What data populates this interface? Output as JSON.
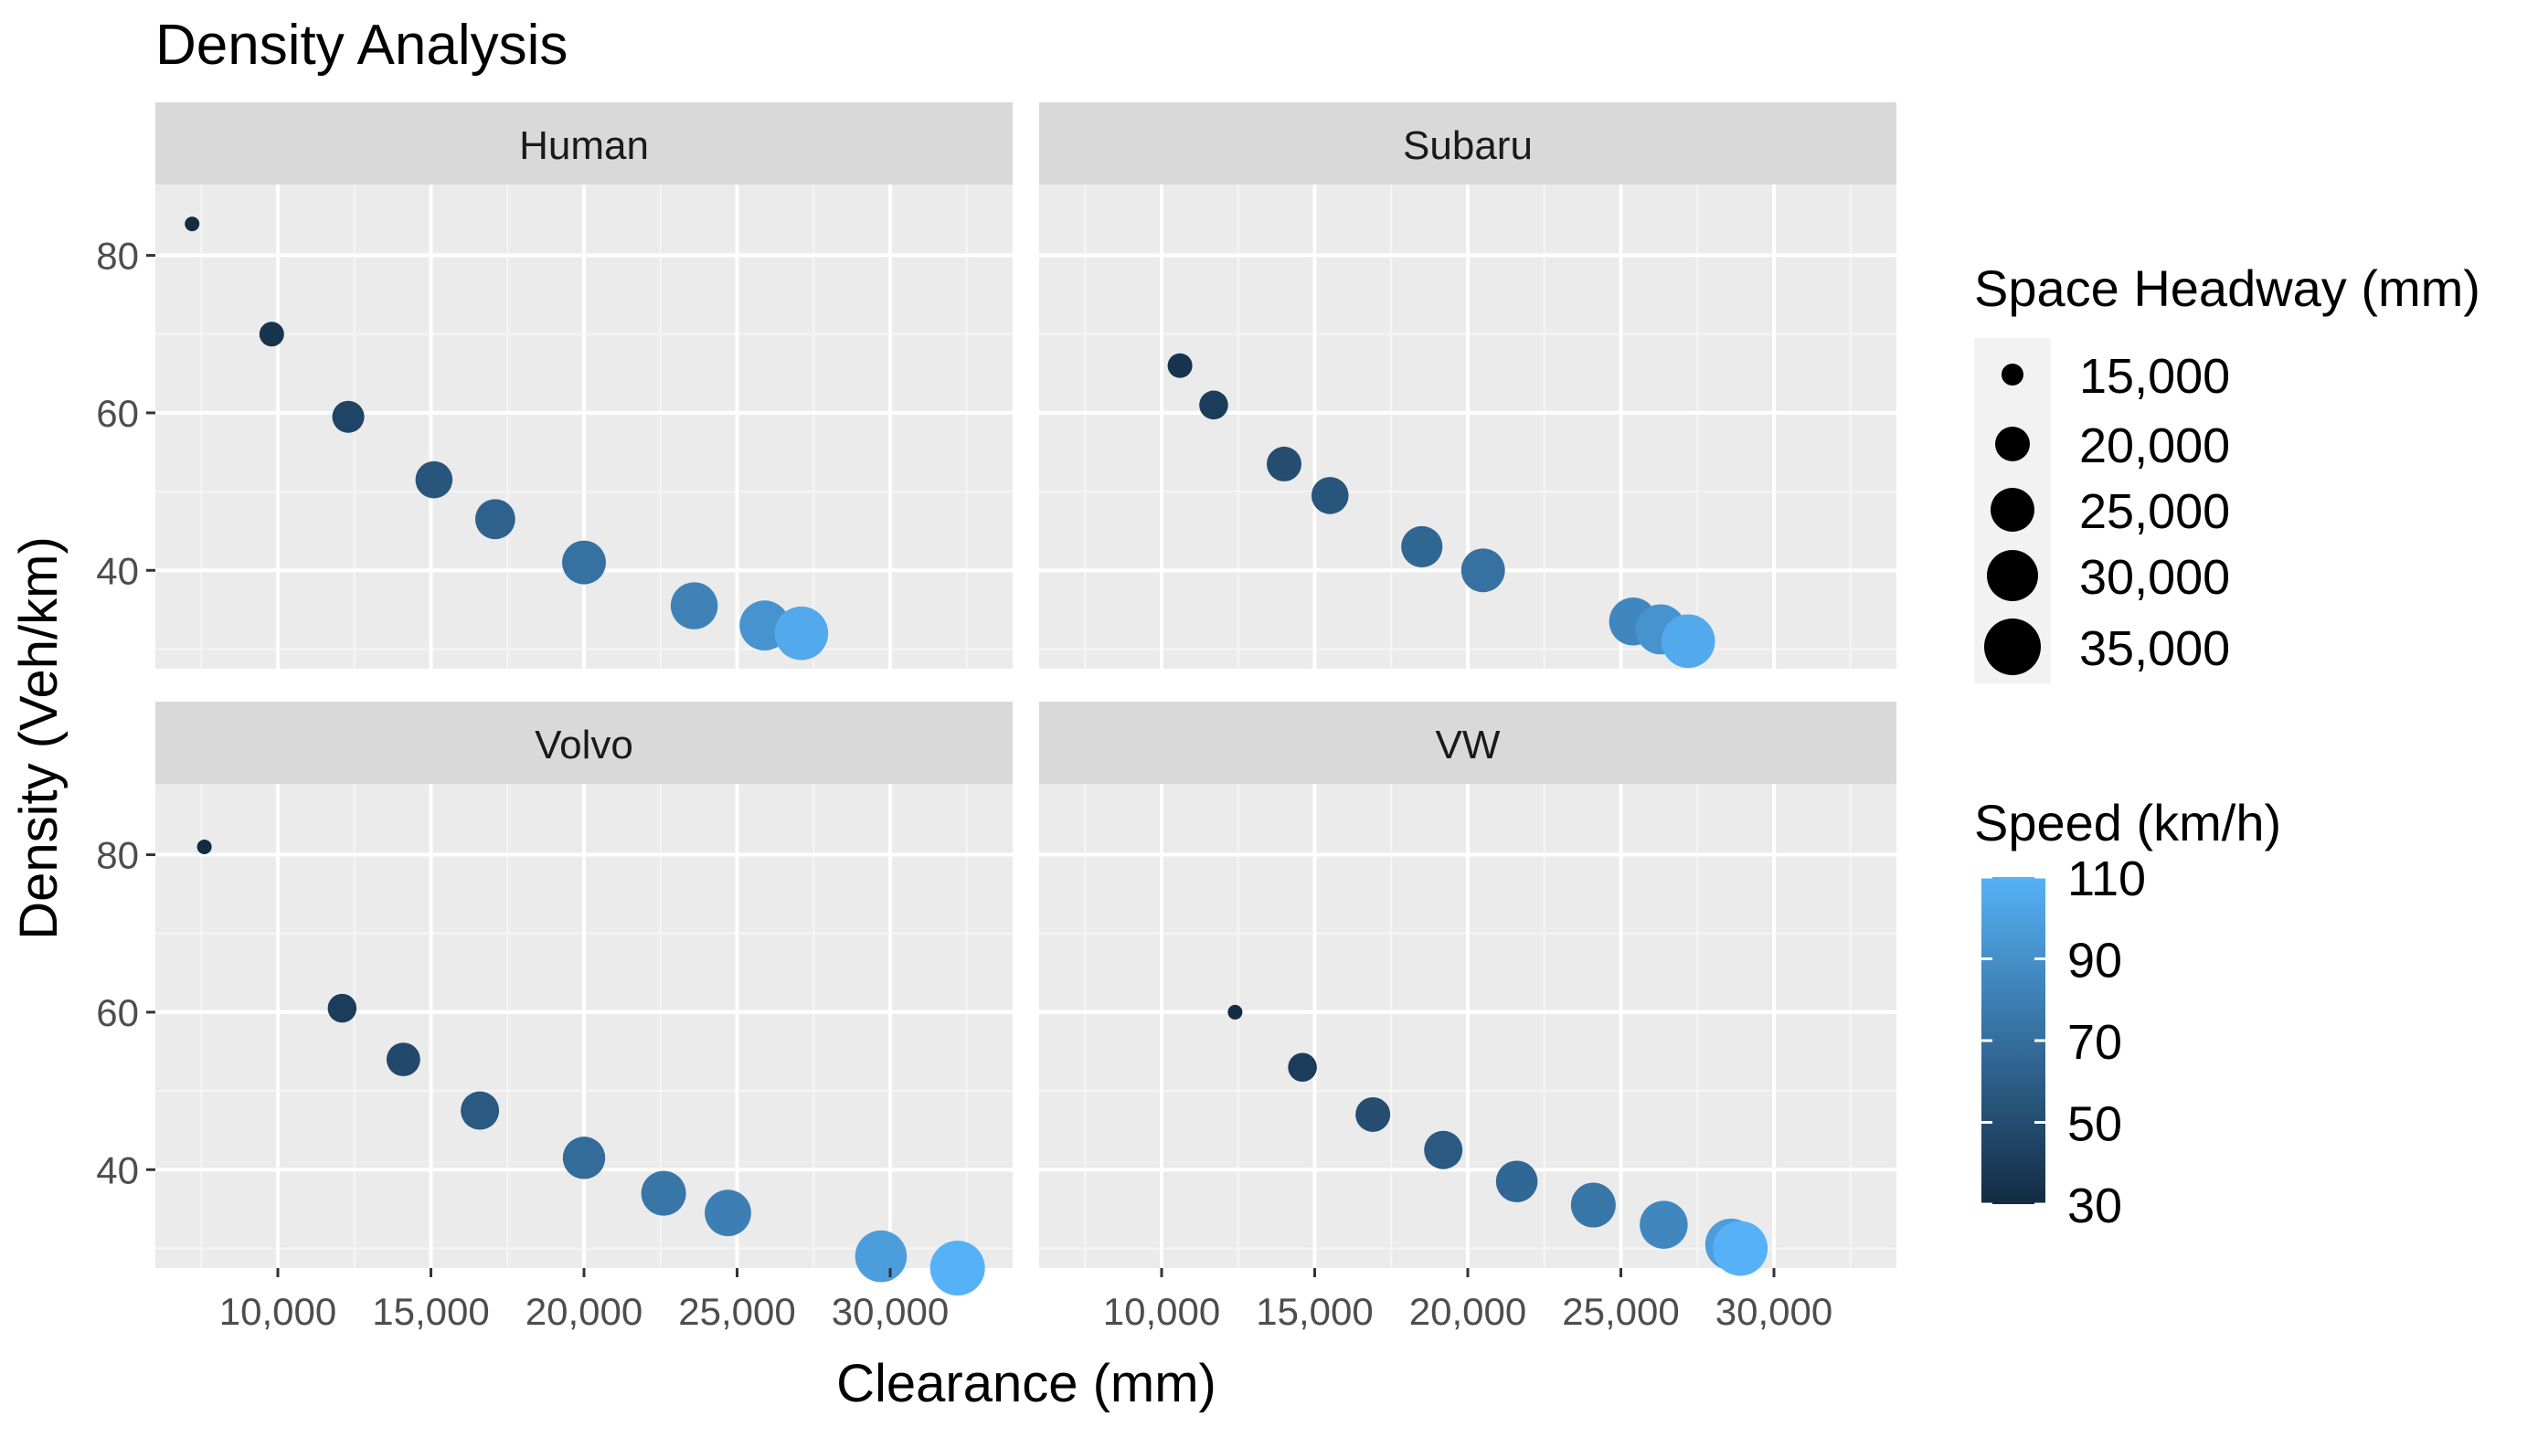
{
  "chart_data": {
    "type": "scatter",
    "title": "Density Analysis",
    "xlabel": "Clearance (mm)",
    "ylabel": "Density (Veh/km)",
    "xlim": [
      6000,
      34000
    ],
    "ylim": [
      27.5,
      89
    ],
    "x_ticks": [
      10000,
      15000,
      20000,
      25000,
      30000
    ],
    "x_tick_labels": [
      "10,000",
      "15,000",
      "20,000",
      "25,000",
      "30,000"
    ],
    "y_ticks": [
      40,
      60,
      80
    ],
    "y_tick_labels": [
      "40",
      "60",
      "80"
    ],
    "facet_order": [
      "Human",
      "Subaru",
      "Volvo",
      "VW"
    ],
    "facets": [
      {
        "name": "Human",
        "points": [
          {
            "x": 7200,
            "y": 84,
            "speed": 30
          },
          {
            "x": 9800,
            "y": 70,
            "speed": 35
          },
          {
            "x": 12300,
            "y": 59.5,
            "speed": 45
          },
          {
            "x": 15100,
            "y": 51.5,
            "speed": 55
          },
          {
            "x": 17100,
            "y": 46.5,
            "speed": 62
          },
          {
            "x": 20000,
            "y": 41,
            "speed": 72
          },
          {
            "x": 23600,
            "y": 35.5,
            "speed": 82
          },
          {
            "x": 25900,
            "y": 33,
            "speed": 92
          },
          {
            "x": 27100,
            "y": 32,
            "speed": 105
          }
        ]
      },
      {
        "name": "Subaru",
        "points": [
          {
            "x": 10600,
            "y": 66,
            "speed": 35
          },
          {
            "x": 11700,
            "y": 61,
            "speed": 40
          },
          {
            "x": 14000,
            "y": 53.5,
            "speed": 50
          },
          {
            "x": 15500,
            "y": 49.5,
            "speed": 55
          },
          {
            "x": 18500,
            "y": 43,
            "speed": 65
          },
          {
            "x": 20500,
            "y": 40,
            "speed": 72
          },
          {
            "x": 25400,
            "y": 33.5,
            "speed": 85
          },
          {
            "x": 26300,
            "y": 32.5,
            "speed": 92
          },
          {
            "x": 27200,
            "y": 31,
            "speed": 105
          }
        ]
      },
      {
        "name": "Volvo",
        "points": [
          {
            "x": 7600,
            "y": 81,
            "speed": 30
          },
          {
            "x": 12100,
            "y": 60.5,
            "speed": 40
          },
          {
            "x": 14100,
            "y": 54,
            "speed": 48
          },
          {
            "x": 16600,
            "y": 47.5,
            "speed": 58
          },
          {
            "x": 20000,
            "y": 41.5,
            "speed": 68
          },
          {
            "x": 22600,
            "y": 37,
            "speed": 75
          },
          {
            "x": 24700,
            "y": 34.5,
            "speed": 80
          },
          {
            "x": 29700,
            "y": 29,
            "speed": 98
          },
          {
            "x": 32200,
            "y": 27.5,
            "speed": 110
          }
        ]
      },
      {
        "name": "VW",
        "points": [
          {
            "x": 12400,
            "y": 60,
            "speed": 30
          },
          {
            "x": 14600,
            "y": 53,
            "speed": 40
          },
          {
            "x": 16900,
            "y": 47,
            "speed": 50
          },
          {
            "x": 19200,
            "y": 42.5,
            "speed": 58
          },
          {
            "x": 21600,
            "y": 38.5,
            "speed": 66
          },
          {
            "x": 24100,
            "y": 35.5,
            "speed": 75
          },
          {
            "x": 26400,
            "y": 33,
            "speed": 85
          },
          {
            "x": 28600,
            "y": 30.5,
            "speed": 98
          },
          {
            "x": 28900,
            "y": 30,
            "speed": 110
          }
        ]
      }
    ],
    "size_legend": {
      "title": "Space Headway (mm)",
      "values": [
        15000,
        20000,
        25000,
        30000,
        35000
      ],
      "labels": [
        "15,000",
        "20,000",
        "25,000",
        "30,000",
        "35,000"
      ]
    },
    "color_legend": {
      "title": "Speed (km/h)",
      "range": [
        30,
        110
      ],
      "breaks": [
        110,
        90,
        70,
        50,
        30
      ],
      "labels": [
        "110",
        "90",
        "70",
        "50",
        "30"
      ],
      "low_color": "#132B43",
      "high_color": "#56B1F7"
    }
  },
  "colors": {
    "panel_bg": "#EBEBEB",
    "strip_bg": "#D9D9D9",
    "grid_major": "#FFFFFF",
    "grid_minor": "#F5F5F5",
    "text": "#000000",
    "axis_text": "#4D4D4D",
    "legend_key_bg": "#F2F2F2"
  }
}
